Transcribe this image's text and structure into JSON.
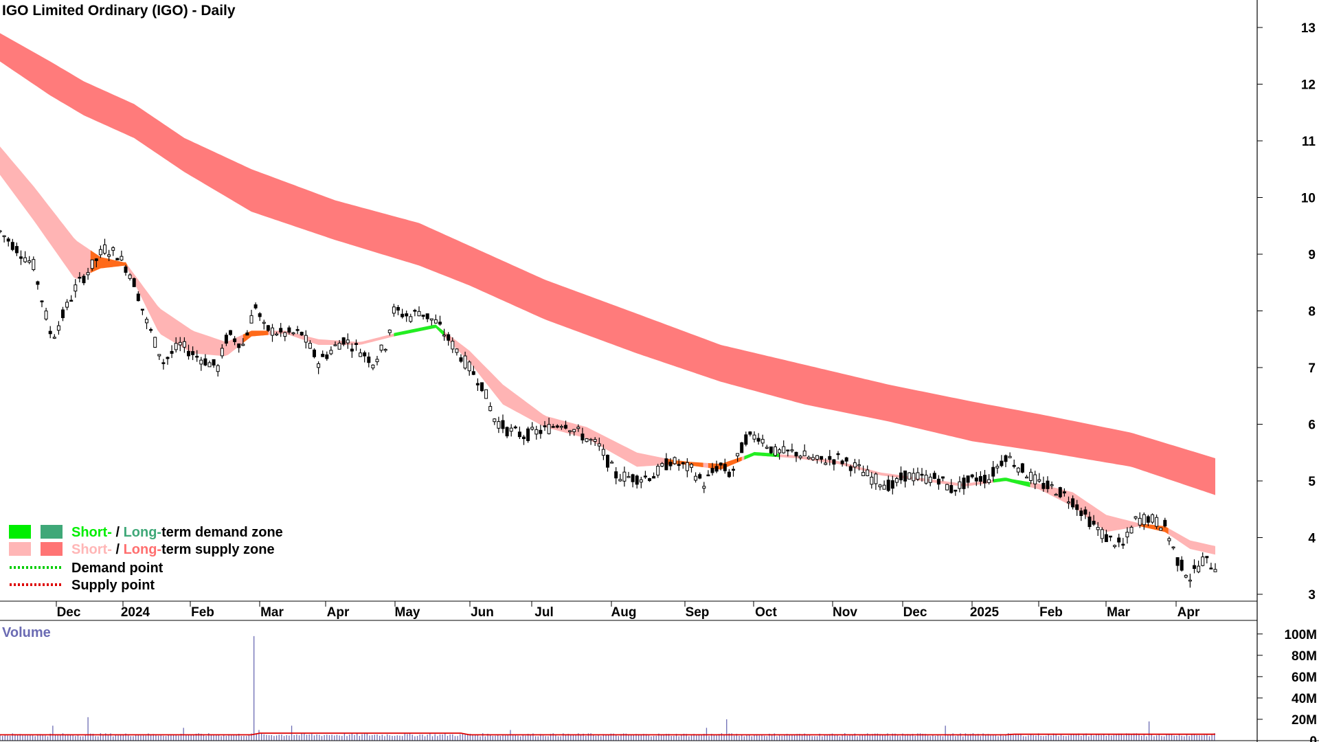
{
  "chart_data": {
    "type": "candlestick",
    "title": "IGO Limited Ordinary (IGO) - Daily",
    "x_labels": [
      "Dec",
      "2024",
      "Feb",
      "Mar",
      "Apr",
      "May",
      "Jun",
      "Jul",
      "Aug",
      "Sep",
      "Oct",
      "Nov",
      "Dec",
      "2025",
      "Feb",
      "Mar",
      "Apr"
    ],
    "x_range": [
      "2023-11-01",
      "2025-04-30"
    ],
    "y_range": [
      2.9,
      13.3
    ],
    "y_ticks": [
      "13",
      "12",
      "11",
      "10",
      "9",
      "8",
      "7",
      "6",
      "5",
      "4",
      "3"
    ],
    "price_anchors": [
      [
        0,
        9.4
      ],
      [
        40,
        8.8
      ],
      [
        62,
        7.5
      ],
      [
        90,
        8.4
      ],
      [
        110,
        8.8
      ],
      [
        125,
        9.1
      ],
      [
        140,
        9.0
      ],
      [
        158,
        8.6
      ],
      [
        175,
        7.8
      ],
      [
        195,
        7.1
      ],
      [
        215,
        7.4
      ],
      [
        235,
        7.2
      ],
      [
        260,
        7.0
      ],
      [
        272,
        7.6
      ],
      [
        290,
        7.4
      ],
      [
        305,
        8.1
      ],
      [
        315,
        7.7
      ],
      [
        335,
        7.6
      ],
      [
        360,
        7.6
      ],
      [
        380,
        7.1
      ],
      [
        410,
        7.5
      ],
      [
        430,
        7.3
      ],
      [
        445,
        7.1
      ],
      [
        460,
        7.4
      ],
      [
        470,
        8.0
      ],
      [
        490,
        7.9
      ],
      [
        500,
        8.0
      ],
      [
        520,
        7.8
      ],
      [
        550,
        7.2
      ],
      [
        575,
        6.7
      ],
      [
        590,
        6.1
      ],
      [
        605,
        5.9
      ],
      [
        625,
        5.8
      ],
      [
        650,
        5.9
      ],
      [
        672,
        6.05
      ],
      [
        690,
        5.85
      ],
      [
        715,
        5.6
      ],
      [
        735,
        5.1
      ],
      [
        760,
        5.05
      ],
      [
        780,
        5.1
      ],
      [
        800,
        5.35
      ],
      [
        825,
        5.2
      ],
      [
        840,
        4.95
      ],
      [
        858,
        5.3
      ],
      [
        872,
        5.1
      ],
      [
        890,
        5.75
      ],
      [
        905,
        5.8
      ],
      [
        925,
        5.5
      ],
      [
        950,
        5.5
      ],
      [
        975,
        5.35
      ],
      [
        1000,
        5.4
      ],
      [
        1020,
        5.25
      ],
      [
        1040,
        5.05
      ],
      [
        1065,
        4.9
      ],
      [
        1080,
        5.1
      ],
      [
        1100,
        5.05
      ],
      [
        1120,
        5.05
      ],
      [
        1135,
        4.85
      ],
      [
        1150,
        4.95
      ],
      [
        1165,
        5.05
      ],
      [
        1180,
        5.05
      ],
      [
        1200,
        5.45
      ],
      [
        1220,
        5.2
      ],
      [
        1240,
        4.95
      ],
      [
        1260,
        4.85
      ],
      [
        1280,
        4.65
      ],
      [
        1300,
        4.3
      ],
      [
        1320,
        4.0
      ],
      [
        1340,
        3.85
      ],
      [
        1355,
        4.3
      ],
      [
        1370,
        4.35
      ],
      [
        1390,
        4.2
      ],
      [
        1405,
        3.6
      ],
      [
        1420,
        3.3
      ],
      [
        1435,
        3.6
      ],
      [
        1450,
        3.5
      ]
    ],
    "long_term_supply_band": [
      [
        0,
        12.9,
        12.4
      ],
      [
        60,
        12.4,
        11.8
      ],
      [
        100,
        12.05,
        11.45
      ],
      [
        160,
        11.65,
        11.05
      ],
      [
        220,
        11.05,
        10.45
      ],
      [
        300,
        10.5,
        9.75
      ],
      [
        400,
        9.95,
        9.25
      ],
      [
        500,
        9.55,
        8.8
      ],
      [
        560,
        9.15,
        8.45
      ],
      [
        650,
        8.55,
        7.85
      ],
      [
        760,
        7.95,
        7.25
      ],
      [
        860,
        7.4,
        6.75
      ],
      [
        960,
        7.05,
        6.35
      ],
      [
        1060,
        6.7,
        6.05
      ],
      [
        1160,
        6.4,
        5.7
      ],
      [
        1250,
        6.15,
        5.5
      ],
      [
        1350,
        5.85,
        5.25
      ],
      [
        1450,
        5.4,
        4.75
      ]
    ],
    "short_term_supply_band": [
      [
        0,
        10.9,
        10.4
      ],
      [
        40,
        10.2,
        9.6
      ],
      [
        90,
        9.25,
        8.55
      ],
      [
        120,
        8.95,
        8.75
      ],
      [
        150,
        8.85,
        8.8
      ],
      [
        190,
        8.05,
        7.6
      ],
      [
        230,
        7.65,
        7.25
      ],
      [
        270,
        7.45,
        7.2
      ],
      [
        300,
        7.65,
        7.55
      ],
      [
        340,
        7.65,
        7.6
      ],
      [
        380,
        7.5,
        7.4
      ],
      [
        430,
        7.45,
        7.4
      ],
      [
        470,
        7.6,
        7.55
      ],
      [
        520,
        7.75,
        7.7
      ],
      [
        560,
        7.3,
        7.1
      ],
      [
        600,
        6.7,
        6.35
      ],
      [
        650,
        6.15,
        5.95
      ],
      [
        700,
        5.95,
        5.75
      ],
      [
        760,
        5.5,
        5.25
      ],
      [
        810,
        5.35,
        5.3
      ],
      [
        860,
        5.3,
        5.2
      ],
      [
        900,
        5.5,
        5.45
      ],
      [
        950,
        5.45,
        5.4
      ],
      [
        1000,
        5.35,
        5.3
      ],
      [
        1050,
        5.15,
        5.1
      ],
      [
        1100,
        5.05,
        5.0
      ],
      [
        1150,
        4.95,
        4.9
      ],
      [
        1200,
        5.05,
        5.0
      ],
      [
        1240,
        4.95,
        4.85
      ],
      [
        1280,
        4.8,
        4.55
      ],
      [
        1320,
        4.4,
        4.1
      ],
      [
        1360,
        4.25,
        4.2
      ],
      [
        1390,
        4.2,
        4.1
      ],
      [
        1420,
        3.95,
        3.8
      ],
      [
        1450,
        3.85,
        3.7
      ]
    ],
    "zone_markers": [
      {
        "x0": 108,
        "x1": 152,
        "kind": "supply"
      },
      {
        "x0": 290,
        "x1": 320,
        "kind": "supply"
      },
      {
        "x0": 470,
        "x1": 530,
        "kind": "demand"
      },
      {
        "x0": 795,
        "x1": 840,
        "kind": "supply"
      },
      {
        "x0": 845,
        "x1": 885,
        "kind": "supply"
      },
      {
        "x0": 888,
        "x1": 930,
        "kind": "demand"
      },
      {
        "x0": 1185,
        "x1": 1230,
        "kind": "demand"
      },
      {
        "x0": 1360,
        "x1": 1395,
        "kind": "supply"
      }
    ],
    "volume": {
      "title": "Volume",
      "y_range": [
        0,
        105
      ],
      "y_ticks": [
        "100M",
        "80M",
        "60M",
        "40M",
        "20M",
        "0"
      ],
      "base_level": 4,
      "average_level": 5.5,
      "spikes": [
        [
          62,
          14
        ],
        [
          105,
          22
        ],
        [
          220,
          12
        ],
        [
          304,
          98
        ],
        [
          310,
          10
        ],
        [
          348,
          14
        ],
        [
          610,
          10
        ],
        [
          842,
          12
        ],
        [
          868,
          20
        ],
        [
          1127,
          14
        ],
        [
          1370,
          18
        ]
      ]
    },
    "legend": [
      {
        "label_short": "Short-",
        "sep": " / ",
        "label_long": "Long-",
        "suffix": "term demand zone",
        "color_short": "#00ee00",
        "color_long": "#3fa878",
        "sw_short": "#00ee00",
        "sw_long": "#3fa878"
      },
      {
        "label_short": "Short-",
        "sep": " / ",
        "label_long": "Long-",
        "suffix": "term supply zone",
        "color_short": "#ffb6b6",
        "color_long": "#ff6f6f",
        "sw_short": "#ffb6b6",
        "sw_long": "#ff7474"
      },
      {
        "label": "Demand point",
        "color": "#00cc00"
      },
      {
        "label": "Supply point",
        "color": "#dd0000"
      }
    ],
    "colors": {
      "long_term_supply": "#ff7b7b",
      "short_term_supply": "#ffb4b4",
      "supply_marker": "#ff6a1a",
      "demand_marker": "#22ee22",
      "candle": "#000000",
      "volume_bar": "#6b6bb3",
      "volume_avg": "#dd0000"
    }
  }
}
